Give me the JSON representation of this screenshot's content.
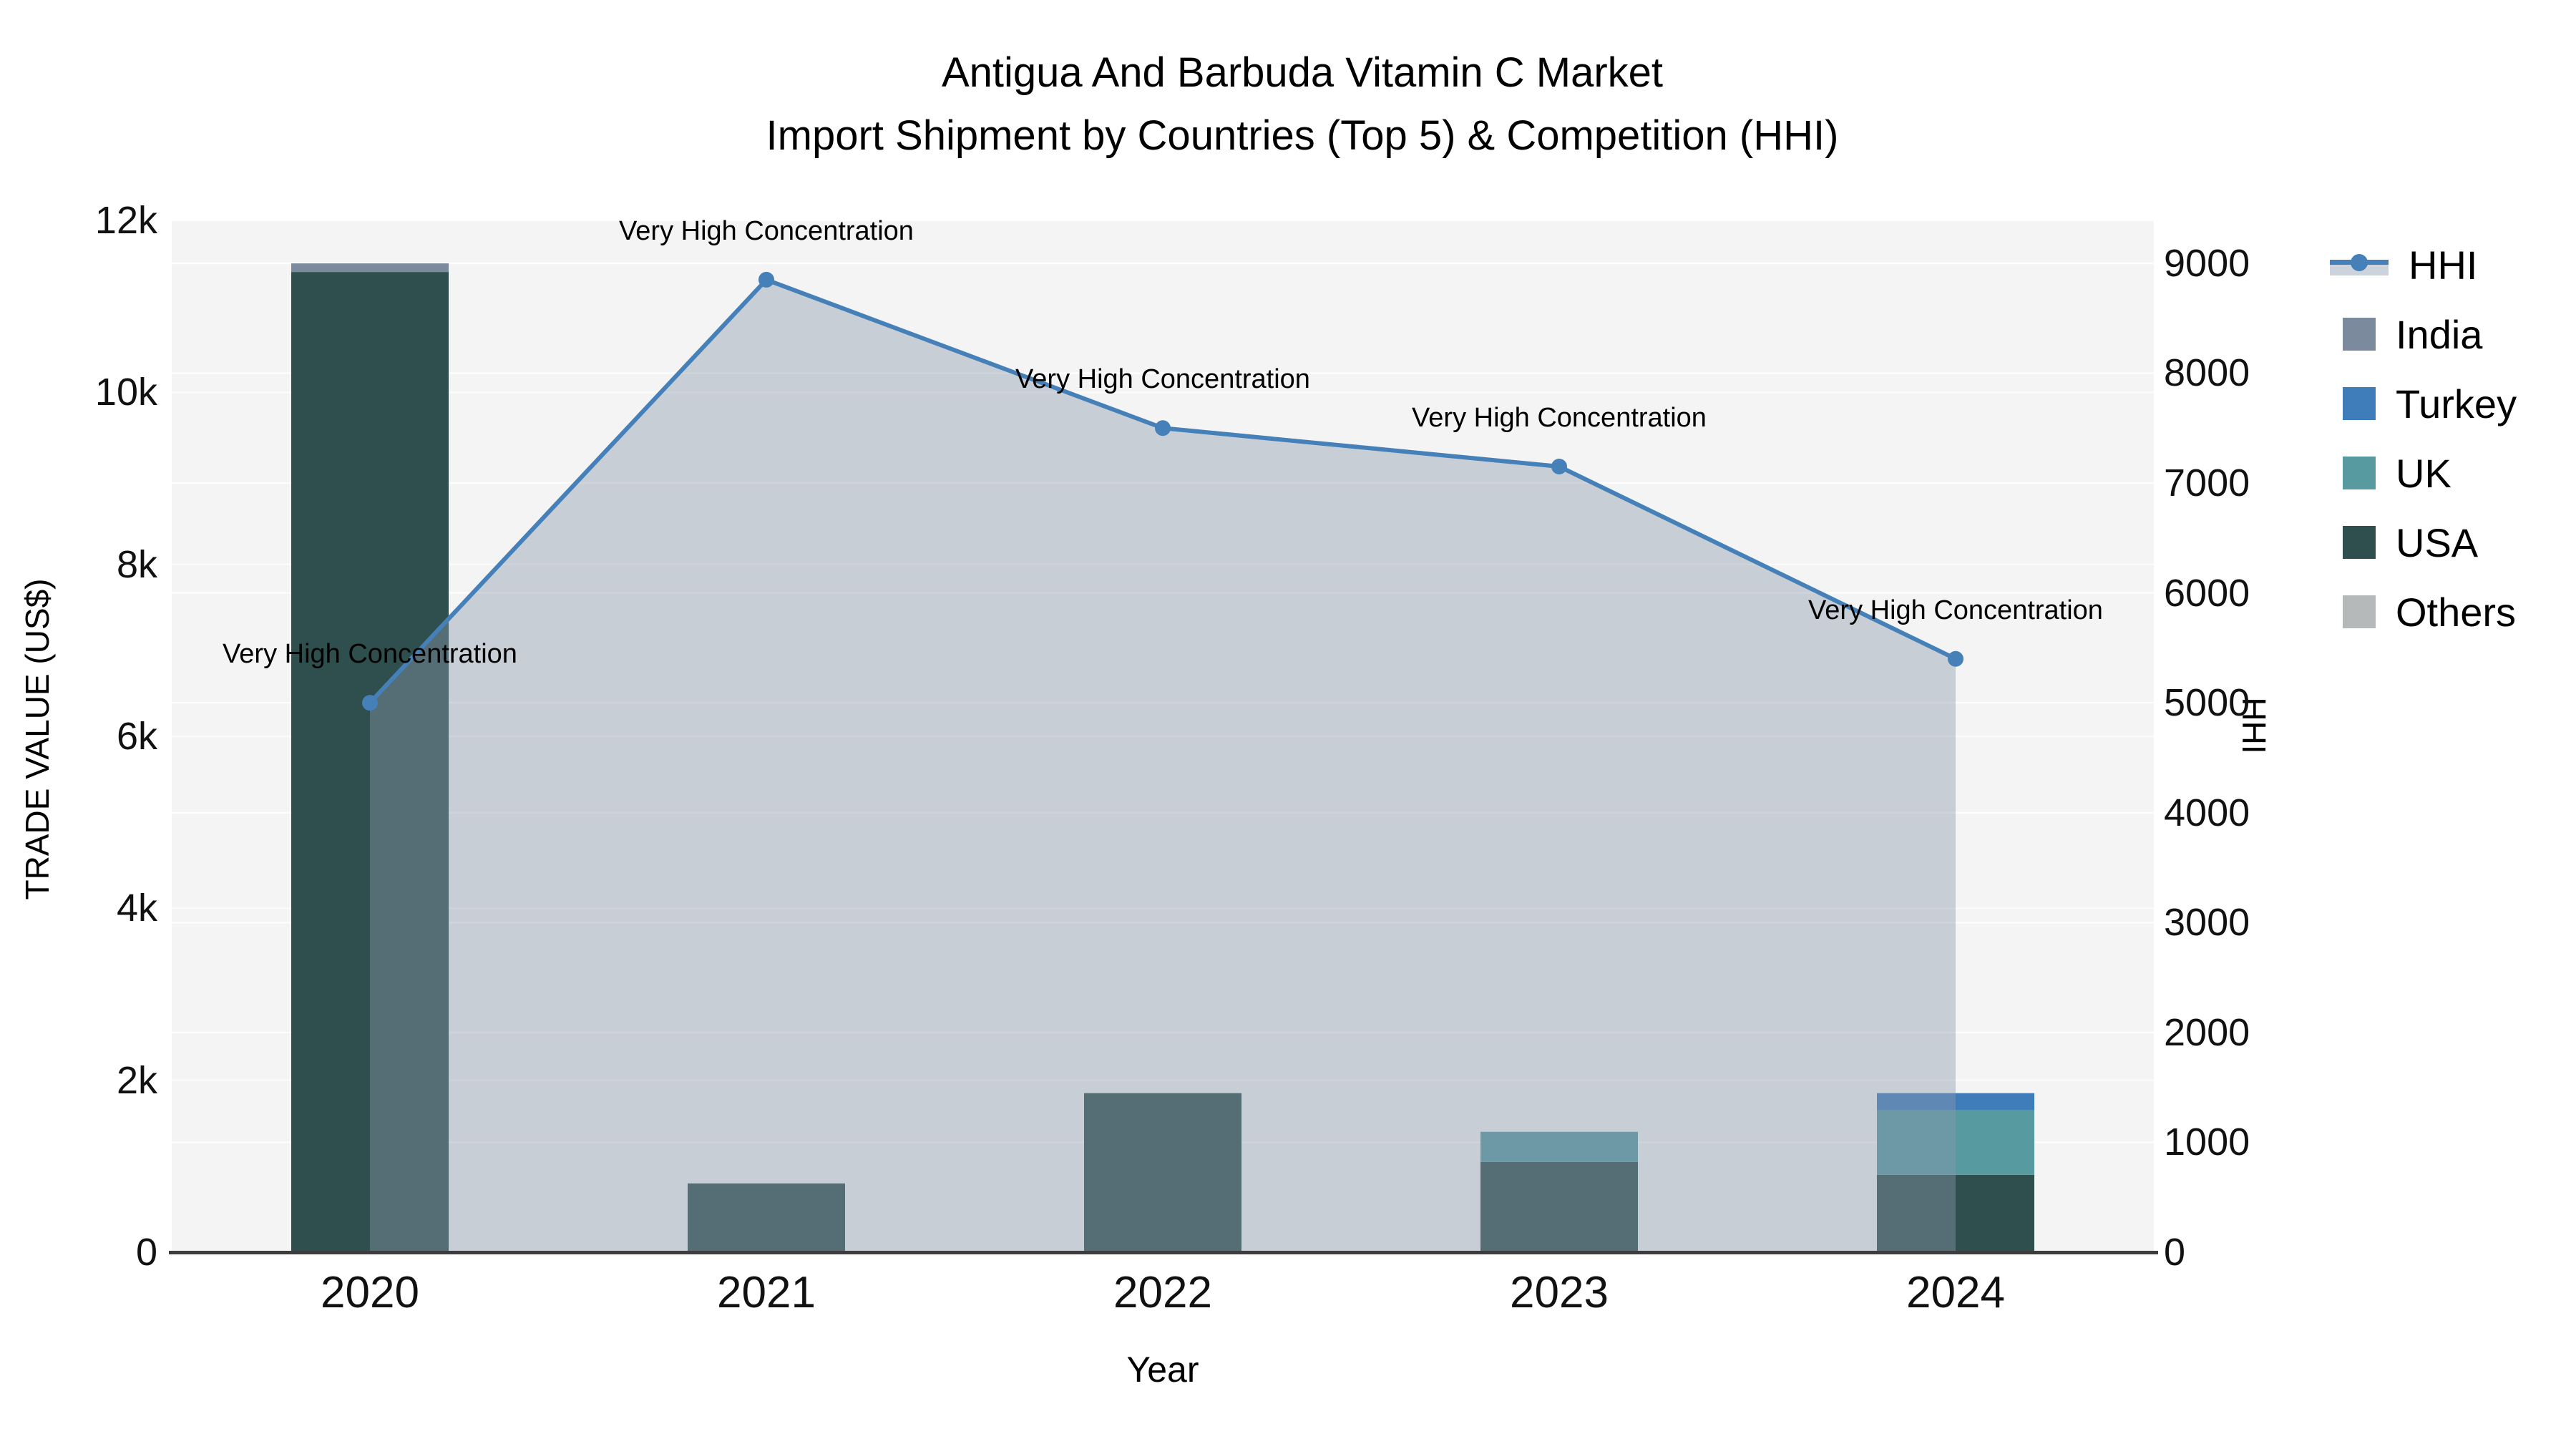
{
  "title": {
    "line1": "Antigua And Barbuda Vitamin C Market",
    "line2": "Import Shipment by Countries (Top 5) & Competition (HHI)"
  },
  "axes": {
    "x": {
      "title": "Year",
      "ticks": [
        "2020",
        "2021",
        "2022",
        "2023",
        "2024"
      ]
    },
    "y_left": {
      "title": "TRADE VALUE (US$)",
      "ticks": [
        "0",
        "2k",
        "4k",
        "6k",
        "8k",
        "10k",
        "12k"
      ]
    },
    "y_right": {
      "title": "HHI",
      "ticks": [
        "0",
        "1000",
        "2000",
        "3000",
        "4000",
        "5000",
        "6000",
        "7000",
        "8000",
        "9000"
      ]
    }
  },
  "legend": {
    "items": [
      {
        "label": "HHI",
        "type": "line",
        "color": "#4580b8"
      },
      {
        "label": "India",
        "type": "swatch",
        "color": "#7b8a9c"
      },
      {
        "label": "Turkey",
        "type": "swatch",
        "color": "#3f7cba"
      },
      {
        "label": "UK",
        "type": "swatch",
        "color": "#579aa0"
      },
      {
        "label": "USA",
        "type": "swatch",
        "color": "#2e4f4d"
      },
      {
        "label": "Others",
        "type": "swatch",
        "color": "#b5b9ba"
      }
    ]
  },
  "colors": {
    "plot_bg": "#f3f4f3",
    "grid": "#ffffff",
    "axis_line": "#3c3c3c",
    "hhi_line": "#4580b8",
    "hhi_area": "rgba(140,152,173,0.42)",
    "legend_band": "#cdd3dc"
  },
  "chart_data": {
    "type": "combo",
    "categories": [
      "2020",
      "2021",
      "2022",
      "2023",
      "2024"
    ],
    "bar_unit": "US$",
    "stack_order": [
      "USA",
      "UK",
      "Turkey",
      "India",
      "Others"
    ],
    "series": [
      {
        "name": "India",
        "type": "bar",
        "color": "#7b8a9c",
        "values": [
          100,
          0,
          0,
          0,
          0
        ]
      },
      {
        "name": "Turkey",
        "type": "bar",
        "color": "#3f7cba",
        "values": [
          0,
          0,
          0,
          0,
          200
        ]
      },
      {
        "name": "UK",
        "type": "bar",
        "color": "#579aa0",
        "values": [
          0,
          0,
          0,
          350,
          750
        ]
      },
      {
        "name": "USA",
        "type": "bar",
        "color": "#2e4f4d",
        "values": [
          11400,
          800,
          1850,
          1050,
          900
        ]
      },
      {
        "name": "Others",
        "type": "bar",
        "color": "#b5b9ba",
        "values": [
          0,
          0,
          0,
          0,
          0
        ]
      },
      {
        "name": "HHI",
        "type": "line",
        "axis": "right",
        "color": "#4580b8",
        "fill": "rgba(140,152,173,0.42)",
        "values": [
          5000,
          8850,
          7500,
          7150,
          5400
        ]
      }
    ],
    "annotations": [
      "Very High Concentration",
      "Very High Concentration",
      "Very High Concentration",
      "Very High Concentration",
      "Very High Concentration"
    ],
    "title": "Antigua And Barbuda Vitamin C Market Import Shipment by Countries (Top 5) & Competition (HHI)",
    "xlabel": "Year",
    "ylabel_left": "TRADE VALUE (US$)",
    "ylabel_right": "HHI",
    "y_left_range": [
      0,
      12000
    ],
    "y_right_range": [
      0,
      9390
    ],
    "grid": true,
    "legend_position": "right"
  }
}
